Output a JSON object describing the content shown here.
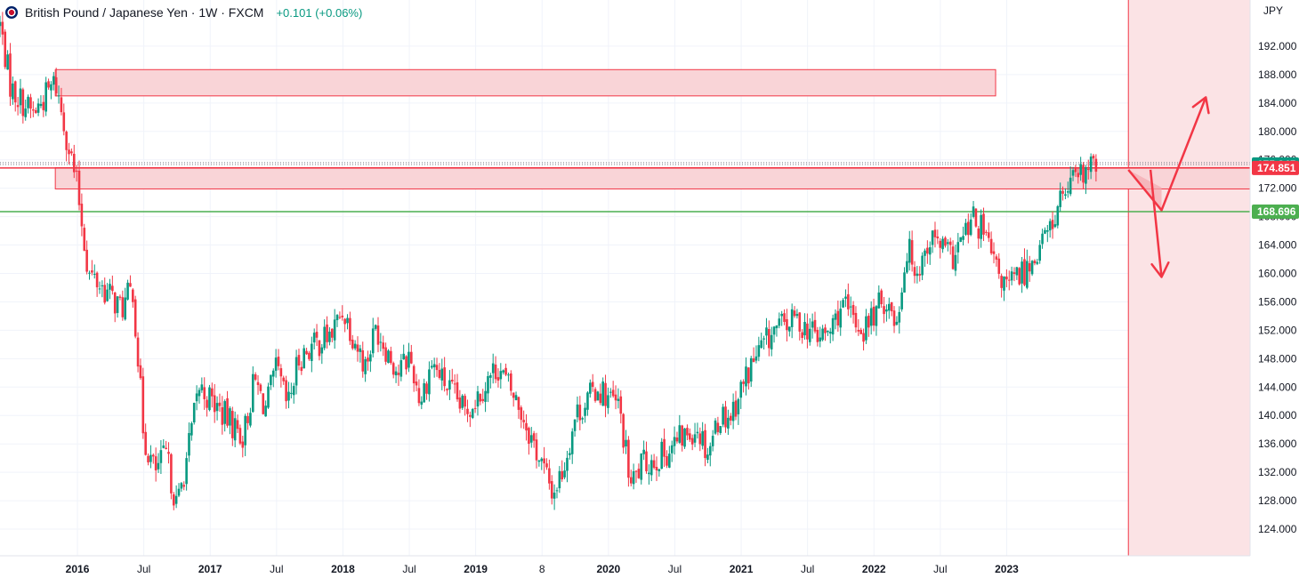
{
  "header": {
    "symbol_title": "British Pound / Japanese Yen · 1W · FXCM",
    "change": "+0.101 (+0.06%)",
    "flag_icon": "gbp-jpy-flag-icon"
  },
  "colors": {
    "up": "#089981",
    "down": "#f23645",
    "zone_fill": "#f9d4d7",
    "zone_stroke": "#f23645",
    "support": "#4caf50",
    "arrow": "#f23645"
  },
  "chart_data": {
    "type": "candlestick",
    "title": "British Pound / Japanese Yen · 1W · FXCM",
    "currency_label": "JPY",
    "y_ticks": [
      "124.000",
      "128.000",
      "132.000",
      "136.000",
      "140.000",
      "144.000",
      "148.000",
      "152.000",
      "156.000",
      "160.000",
      "164.000",
      "168.000",
      "172.000",
      "176.000",
      "180.000",
      "184.000",
      "188.000",
      "192.000"
    ],
    "y_range": [
      121.5,
      197.5
    ],
    "x_ticks": [
      {
        "label": "2016",
        "bold": true,
        "date": "2016-01"
      },
      {
        "label": "Jul",
        "bold": false,
        "date": "2016-07"
      },
      {
        "label": "2017",
        "bold": true,
        "date": "2017-01"
      },
      {
        "label": "Jul",
        "bold": false,
        "date": "2017-07"
      },
      {
        "label": "2018",
        "bold": true,
        "date": "2018-01"
      },
      {
        "label": "Jul",
        "bold": false,
        "date": "2018-07"
      },
      {
        "label": "2019",
        "bold": true,
        "date": "2019-01"
      },
      {
        "label": "8",
        "bold": false,
        "date": "2019-07"
      },
      {
        "label": "2020",
        "bold": true,
        "date": "2020-01"
      },
      {
        "label": "Jul",
        "bold": false,
        "date": "2020-07"
      },
      {
        "label": "2021",
        "bold": true,
        "date": "2021-01"
      },
      {
        "label": "Jul",
        "bold": false,
        "date": "2021-07"
      },
      {
        "label": "2022",
        "bold": true,
        "date": "2022-01"
      },
      {
        "label": "Jul",
        "bold": false,
        "date": "2022-07"
      },
      {
        "label": "2023",
        "bold": true,
        "date": "2023-01"
      }
    ],
    "x_range": [
      "2015-06",
      "2024-11"
    ],
    "price_tags": [
      {
        "value": 175.345,
        "label": "175.345",
        "color": "#089981"
      },
      {
        "value": 174.851,
        "label": "174.851",
        "color": "#f23645"
      },
      {
        "value": 168.696,
        "label": "168.696",
        "color": "#4caf50"
      }
    ],
    "horizontal_lines": [
      {
        "value": 174.851,
        "color": "#f23645",
        "style": "solid"
      },
      {
        "value": 168.696,
        "color": "#4caf50",
        "style": "solid"
      },
      {
        "value": 175.345,
        "color": "#787b86",
        "style": "dotted"
      },
      {
        "value": 175.6,
        "color": "#787b86",
        "style": "dotted"
      }
    ],
    "zones": [
      {
        "from": "2015-11",
        "to": "2022-12",
        "low": 185.0,
        "high": 188.7
      },
      {
        "from": "2015-11",
        "to": "2024-11",
        "low": 171.9,
        "high": 174.9
      }
    ],
    "highlight_from": "2023-12",
    "projection_arrows": [
      {
        "points": [
          [
            "2023-12",
            174.6
          ],
          [
            "2024-03",
            168.9
          ],
          [
            "2024-07",
            184.8
          ]
        ],
        "heads": [
          2
        ]
      },
      {
        "points": [
          [
            "2024-02",
            174.6
          ],
          [
            "2024-03",
            159.5
          ]
        ],
        "heads": [
          1
        ]
      }
    ],
    "triangle": [
      [
        "2023-12",
        174.6
      ],
      [
        "2024-03",
        168.9
      ],
      [
        "2024-03",
        172.1
      ]
    ],
    "path_anchors": [
      [
        "2015-06",
        195.0
      ],
      [
        "2015-07",
        186.0
      ],
      [
        "2015-09",
        182.5
      ],
      [
        "2015-11",
        187.0
      ],
      [
        "2016-01",
        172.0
      ],
      [
        "2016-02",
        160.0
      ],
      [
        "2016-03",
        158.5
      ],
      [
        "2016-05",
        155.0
      ],
      [
        "2016-06",
        158.0
      ],
      [
        "2016-07",
        137.0
      ],
      [
        "2016-08",
        132.0
      ],
      [
        "2016-09",
        134.5
      ],
      [
        "2016-10",
        127.0
      ],
      [
        "2016-11",
        135.0
      ],
      [
        "2016-12",
        144.0
      ],
      [
        "2017-02",
        140.5
      ],
      [
        "2017-04",
        137.0
      ],
      [
        "2017-05",
        145.0
      ],
      [
        "2017-06",
        141.0
      ],
      [
        "2017-07",
        146.5
      ],
      [
        "2017-08",
        141.0
      ],
      [
        "2017-09",
        148.0
      ],
      [
        "2017-10",
        149.5
      ],
      [
        "2017-12",
        151.5
      ],
      [
        "2018-01",
        155.0
      ],
      [
        "2018-03",
        147.0
      ],
      [
        "2018-04",
        152.5
      ],
      [
        "2018-06",
        146.0
      ],
      [
        "2018-07",
        148.5
      ],
      [
        "2018-08",
        142.0
      ],
      [
        "2018-09",
        147.5
      ],
      [
        "2018-10",
        145.0
      ],
      [
        "2018-12",
        140.5
      ],
      [
        "2019-01",
        142.5
      ],
      [
        "2019-03",
        147.0
      ],
      [
        "2019-05",
        141.0
      ],
      [
        "2019-06",
        137.0
      ],
      [
        "2019-08",
        129.0
      ],
      [
        "2019-09",
        133.0
      ],
      [
        "2019-10",
        140.0
      ],
      [
        "2019-12",
        144.0
      ],
      [
        "2020-02",
        141.0
      ],
      [
        "2020-03",
        130.0
      ],
      [
        "2020-04",
        133.0
      ],
      [
        "2020-06",
        134.5
      ],
      [
        "2020-07",
        136.0
      ],
      [
        "2020-09",
        138.5
      ],
      [
        "2020-10",
        135.0
      ],
      [
        "2020-11",
        140.0
      ],
      [
        "2020-12",
        140.0
      ],
      [
        "2021-02",
        147.5
      ],
      [
        "2021-04",
        152.0
      ],
      [
        "2021-06",
        153.5
      ],
      [
        "2021-08",
        151.0
      ],
      [
        "2021-09",
        151.5
      ],
      [
        "2021-10",
        155.5
      ],
      [
        "2021-12",
        152.0
      ],
      [
        "2022-02",
        156.5
      ],
      [
        "2022-03",
        153.0
      ],
      [
        "2022-04",
        163.5
      ],
      [
        "2022-05",
        160.5
      ],
      [
        "2022-06",
        165.0
      ],
      [
        "2022-07",
        164.0
      ],
      [
        "2022-08",
        162.0
      ],
      [
        "2022-10",
        167.5
      ],
      [
        "2022-11",
        165.5
      ],
      [
        "2022-12",
        160.5
      ],
      [
        "2023-01",
        158.0
      ],
      [
        "2023-03",
        161.0
      ],
      [
        "2023-04",
        164.0
      ],
      [
        "2023-05",
        166.5
      ],
      [
        "2023-06",
        171.0
      ],
      [
        "2023-07",
        172.5
      ],
      [
        "2023-08",
        174.0
      ],
      [
        "2023-09",
        175.3
      ]
    ]
  }
}
